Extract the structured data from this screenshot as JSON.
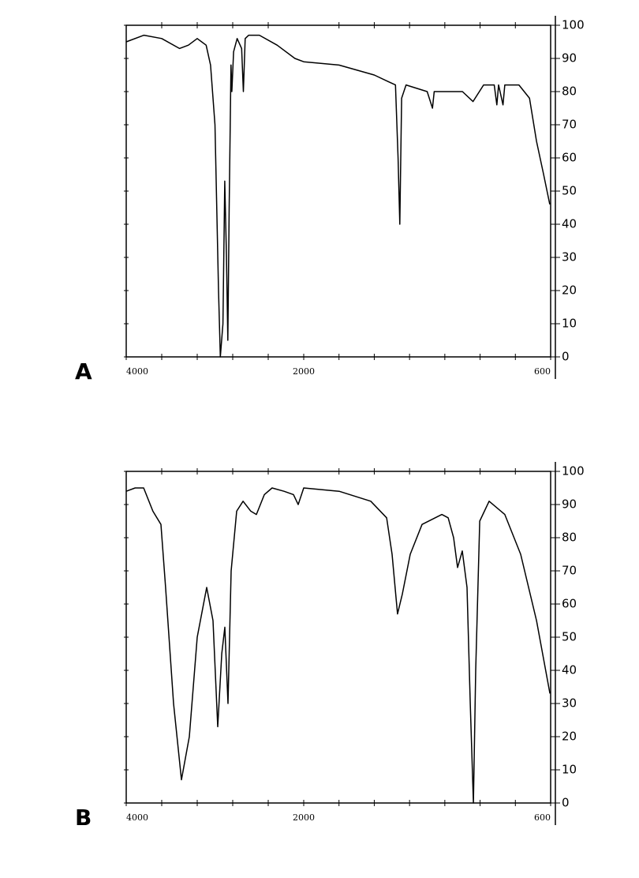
{
  "chart_data": [
    {
      "type": "line",
      "label": "A",
      "color": "#000000",
      "x": [
        4000,
        3800,
        3600,
        3400,
        3300,
        3200,
        3100,
        3050,
        3000,
        2960,
        2940,
        2910,
        2890,
        2870,
        2855,
        2840,
        2820,
        2810,
        2790,
        2750,
        2700,
        2680,
        2660,
        2620,
        2500,
        2300,
        2100,
        2000,
        1800,
        1600,
        1520,
        1480,
        1465,
        1455,
        1445,
        1420,
        1300,
        1270,
        1260,
        1100,
        1040,
        980,
        920,
        905,
        895,
        870,
        860,
        780,
        720,
        680,
        640,
        605
      ],
      "values": [
        95,
        97,
        96,
        93,
        94,
        96,
        94,
        88,
        70,
        20,
        0,
        10,
        53,
        30,
        5,
        45,
        88,
        80,
        92,
        96,
        93,
        80,
        96,
        97,
        97,
        94,
        90,
        89,
        88,
        85,
        83,
        82,
        60,
        40,
        78,
        82,
        80,
        75,
        80,
        80,
        77,
        82,
        82,
        76,
        82,
        76,
        82,
        82,
        78,
        65,
        55,
        46
      ],
      "xlim": [
        4000,
        600
      ],
      "xbreak": 2000,
      "xticks": [
        4000,
        2000,
        600
      ],
      "xminorticks": [
        3600,
        3200,
        2800,
        2400,
        1800,
        1600,
        1400,
        1200,
        1000,
        800
      ],
      "ylim": [
        0,
        100
      ],
      "yticks": [
        0,
        10,
        20,
        30,
        40,
        50,
        60,
        70,
        80,
        90,
        100
      ]
    },
    {
      "type": "line",
      "label": "B",
      "color": "#000000",
      "x": [
        4000,
        3900,
        3804,
        3700,
        3609,
        3556,
        3467,
        3378,
        3289,
        3200,
        3093,
        3022,
        2969,
        2924,
        2889,
        2853,
        2818,
        2756,
        2684,
        2596,
        2533,
        2444,
        2356,
        2222,
        2116,
        2062,
        2000,
        1799,
        1620,
        1530,
        1499,
        1468,
        1441,
        1396,
        1329,
        1217,
        1181,
        1150,
        1128,
        1101,
        1074,
        1056,
        1038,
        1025,
        1002,
        949,
        860,
        770,
        680,
        604
      ],
      "values": [
        94,
        95,
        95,
        88,
        84,
        65,
        30,
        7,
        20,
        50,
        65,
        55,
        23,
        45,
        53,
        30,
        70,
        88,
        91,
        88,
        87,
        93,
        95,
        94,
        93,
        90,
        95,
        94,
        91,
        86,
        75,
        57,
        63,
        75,
        84,
        87,
        86,
        80,
        71,
        76,
        65,
        30,
        0,
        40,
        85,
        91,
        87,
        75,
        55,
        33
      ],
      "xlim": [
        4000,
        600
      ],
      "xbreak": 2000,
      "xticks": [
        4000,
        2000,
        600
      ],
      "xminorticks": [
        3600,
        3200,
        2800,
        2400,
        1800,
        1600,
        1400,
        1200,
        1000,
        800
      ],
      "ylim": [
        0,
        100
      ],
      "yticks": [
        0,
        10,
        20,
        30,
        40,
        50,
        60,
        70,
        80,
        90,
        100
      ]
    }
  ]
}
